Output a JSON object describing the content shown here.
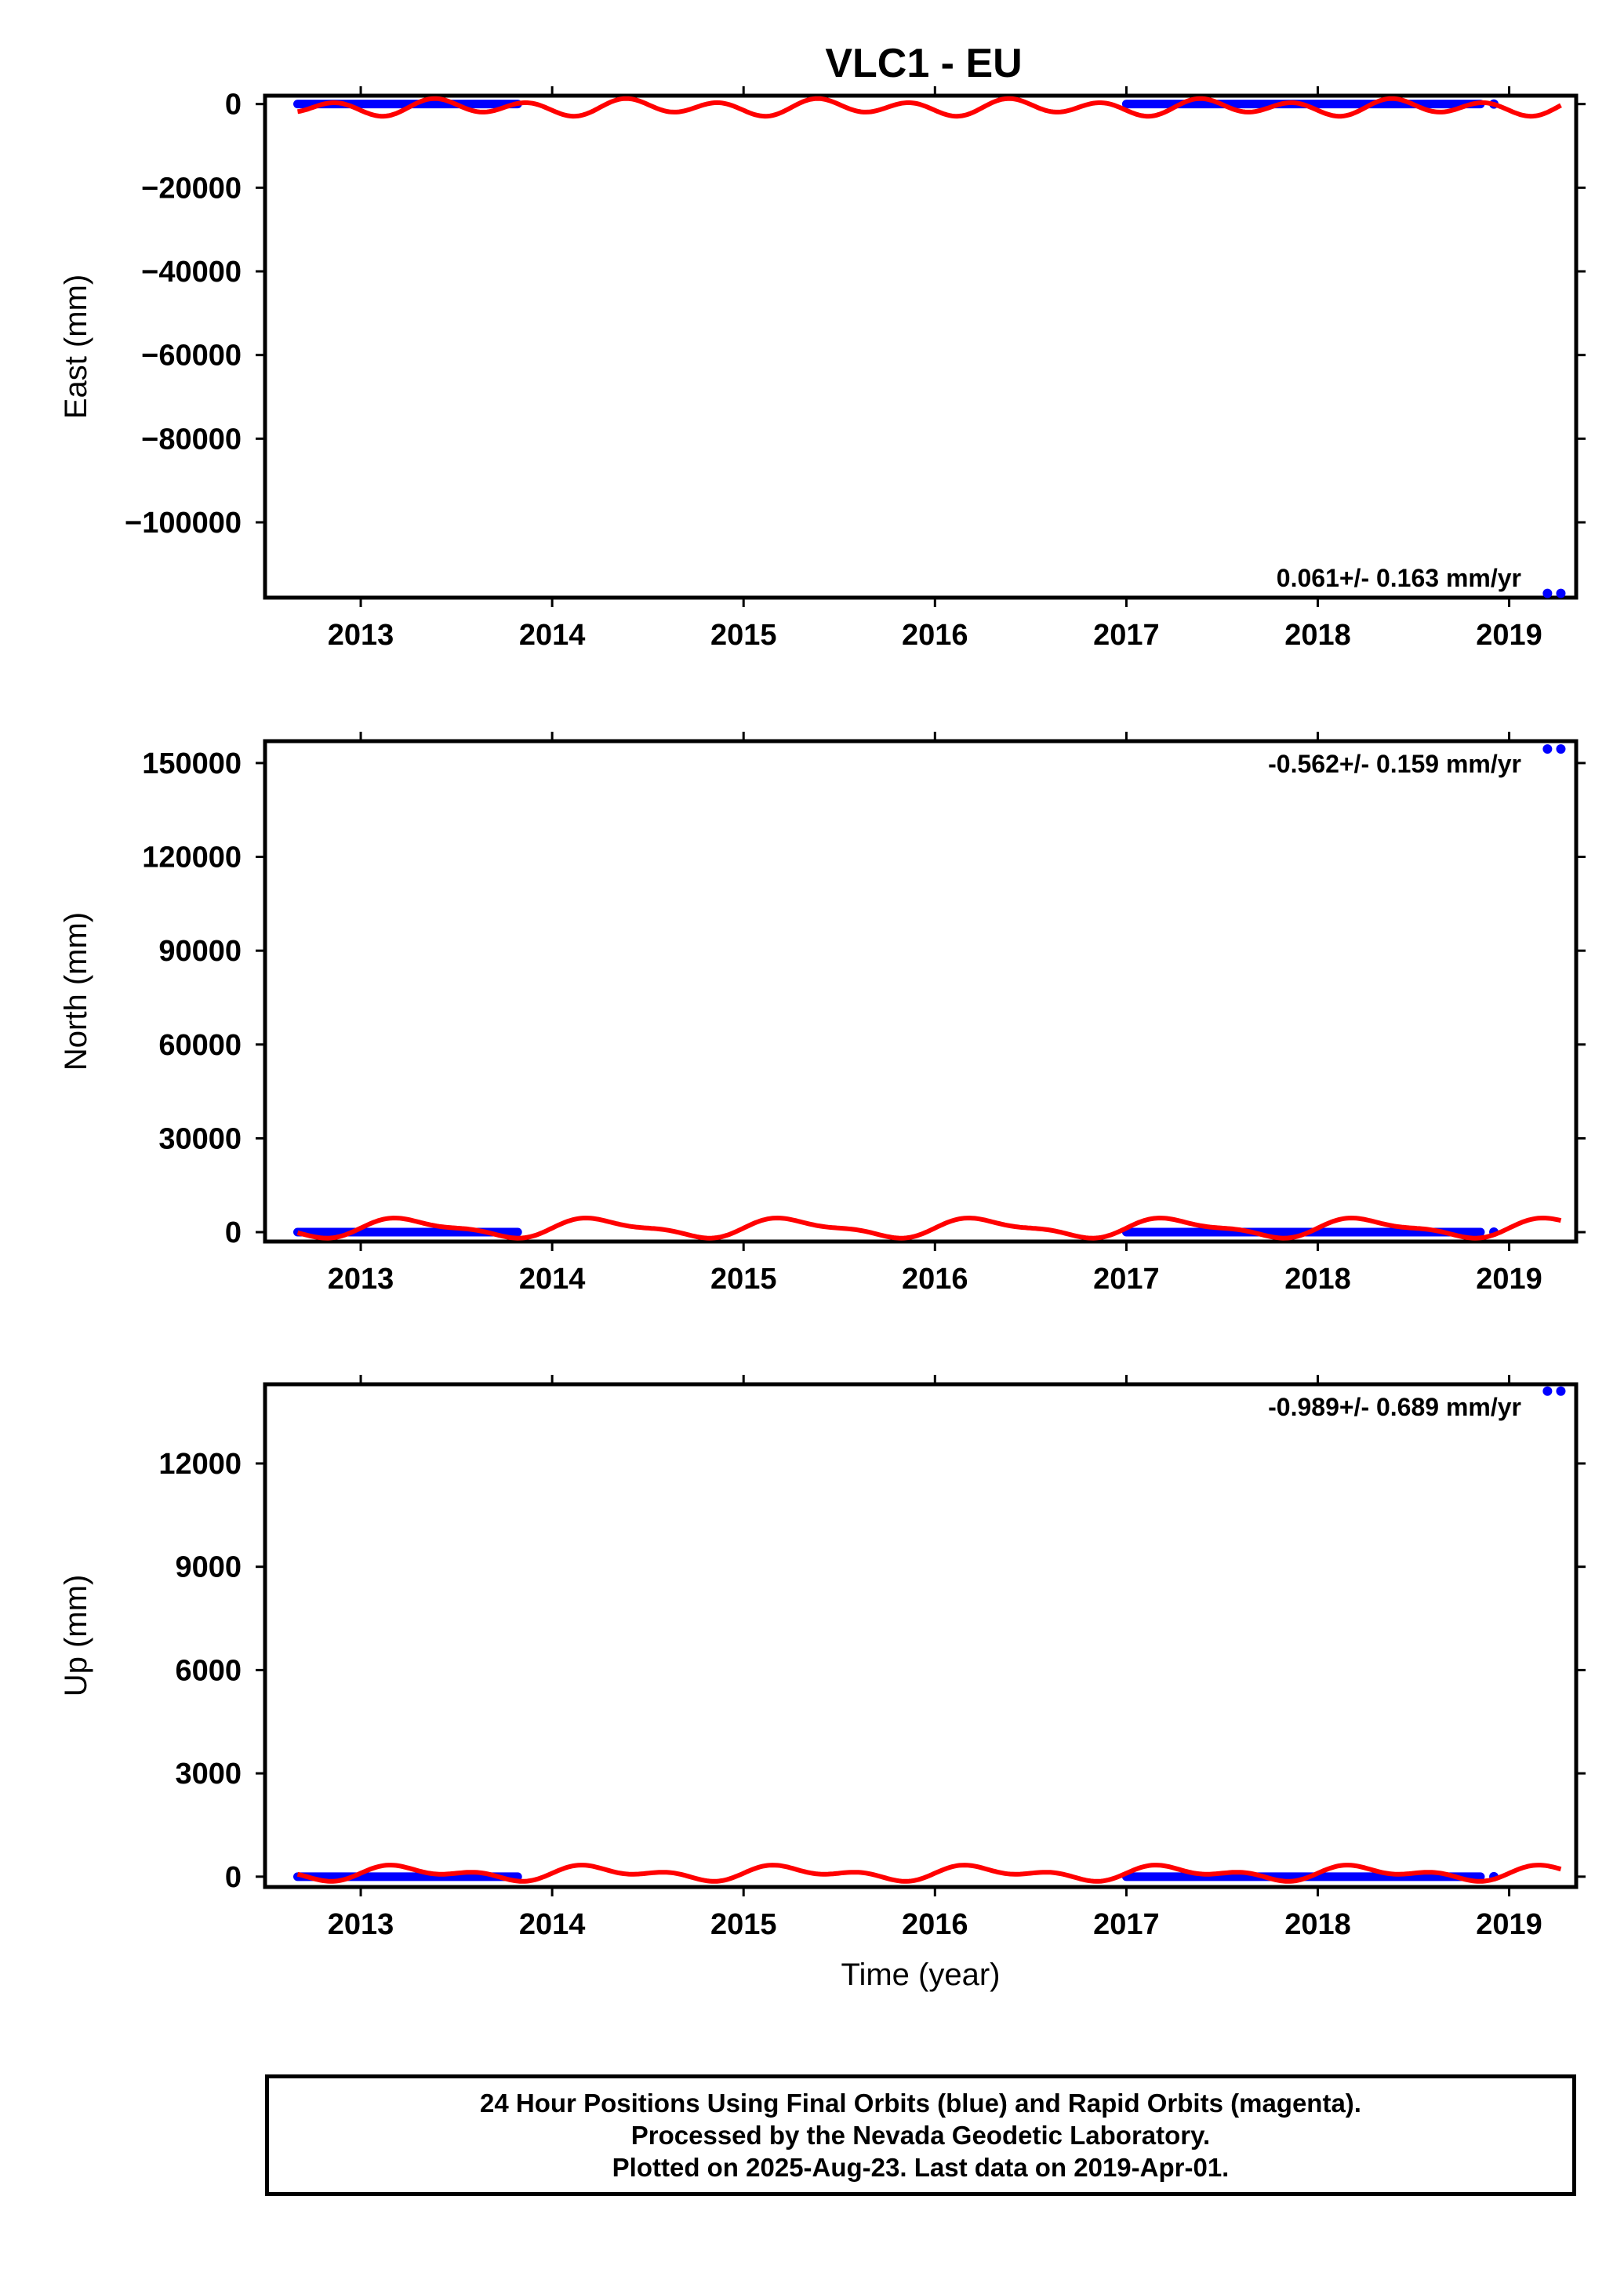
{
  "chart_data": {
    "title": "VLC1 - EU",
    "xlabel": "Time (year)",
    "x_tick_labels": [
      "2013",
      "2014",
      "2015",
      "2016",
      "2017",
      "2018",
      "2019"
    ],
    "xlim": [
      2012.5,
      2019.35
    ],
    "colors": {
      "final_orbits": "#0000ff",
      "seasonal_model": "#ff0000"
    },
    "panels": [
      {
        "type": "scatter",
        "component": "east",
        "ylabel": "East (mm)",
        "ylim": [
          -118000,
          2000
        ],
        "y_ticks": [
          0,
          -20000,
          -40000,
          -60000,
          -80000,
          -100000
        ],
        "y_tick_labels": [
          "0",
          "−20000",
          "−40000",
          "−60000",
          "−80000",
          "−100000"
        ],
        "rate_text": "0.061+/- 0.163 mm/yr",
        "rate_position": "bottom-right",
        "series": [
          {
            "kind": "points",
            "x_ranges": [
              [
                2012.67,
                2013.82
              ],
              [
                2017.0,
                2018.85
              ]
            ],
            "y": 0
          },
          {
            "kind": "points",
            "x": [
              2018.92
            ],
            "y": [
              0
            ]
          },
          {
            "kind": "points",
            "x": [
              2019.2,
              2019.27
            ],
            "y": [
              -117000,
              -117000
            ]
          },
          {
            "kind": "curve",
            "x_range": [
              2012.67,
              2019.27
            ],
            "baseline": -800,
            "annual_amp": 700,
            "semiannual_amp": 1600,
            "phase": -0.25
          }
        ]
      },
      {
        "type": "scatter",
        "component": "north",
        "ylabel": "North (mm)",
        "ylim": [
          -3000,
          157000
        ],
        "y_ticks": [
          0,
          30000,
          60000,
          90000,
          120000,
          150000
        ],
        "y_tick_labels": [
          "0",
          "30000",
          "60000",
          "90000",
          "120000",
          "150000"
        ],
        "rate_text": "-0.562+/- 0.159 mm/yr",
        "rate_position": "top-right",
        "series": [
          {
            "kind": "points",
            "x_ranges": [
              [
                2012.67,
                2013.82
              ],
              [
                2017.0,
                2018.85
              ]
            ],
            "y": 0
          },
          {
            "kind": "points",
            "x": [
              2018.92
            ],
            "y": [
              0
            ]
          },
          {
            "kind": "points",
            "x": [
              2019.2,
              2019.27
            ],
            "y": [
              154500,
              154500
            ]
          },
          {
            "kind": "curve",
            "x_range": [
              2012.67,
              2019.27
            ],
            "baseline": 1300,
            "annual_amp": 2700,
            "semiannual_amp": 1000,
            "phase": 0.0
          }
        ]
      },
      {
        "type": "scatter",
        "component": "up",
        "ylabel": "Up (mm)",
        "ylim": [
          -300,
          14300
        ],
        "y_ticks": [
          0,
          3000,
          6000,
          9000,
          12000
        ],
        "y_tick_labels": [
          "0",
          "3000",
          "6000",
          "9000",
          "12000"
        ],
        "rate_text": "-0.989+/- 0.689 mm/yr",
        "rate_position": "top-right",
        "series": [
          {
            "kind": "points",
            "x_ranges": [
              [
                2012.67,
                2013.82
              ],
              [
                2017.0,
                2018.85
              ]
            ],
            "y": 0
          },
          {
            "kind": "points",
            "x": [
              2018.92
            ],
            "y": [
              0
            ]
          },
          {
            "kind": "points",
            "x": [
              2019.2,
              2019.27
            ],
            "y": [
              14100,
              14100
            ]
          },
          {
            "kind": "curve",
            "x_range": [
              2012.67,
              2019.27
            ],
            "baseline": 100,
            "annual_amp": 150,
            "semiannual_amp": 120,
            "phase": 0.0
          }
        ]
      }
    ]
  },
  "footer": {
    "line1": "24 Hour Positions Using Final Orbits (blue) and Rapid Orbits (magenta).",
    "line2": "Processed by the Nevada Geodetic Laboratory.",
    "line3": "Plotted on 2025-Aug-23. Last data on 2019-Apr-01."
  }
}
